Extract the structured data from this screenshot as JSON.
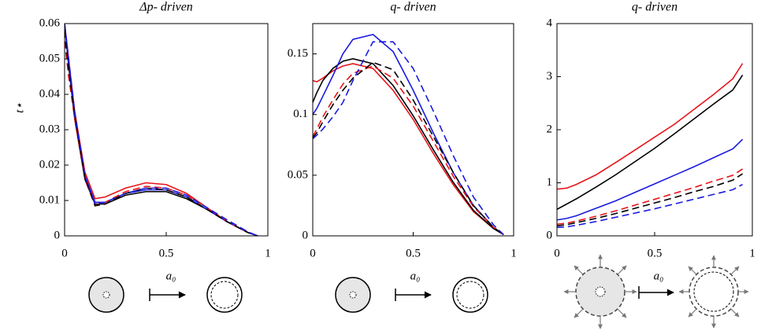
{
  "chart_data": [
    {
      "type": "line",
      "title": "Δp- driven",
      "ylabel": "t⋆",
      "annotation": "a₀",
      "x": [
        0,
        0.02,
        0.05,
        0.1,
        0.15,
        0.2,
        0.3,
        0.4,
        0.5,
        0.6,
        0.7,
        0.8,
        0.9,
        0.95
      ],
      "xlim": [
        0,
        1
      ],
      "xticks": [
        0,
        0.5,
        1
      ],
      "ylim": [
        0,
        0.06
      ],
      "yticks": [
        0,
        0.01,
        0.02,
        0.03,
        0.04,
        0.05,
        0.06
      ],
      "series": [
        {
          "color": "#e8141b",
          "style": "solid",
          "values": [
            0.06,
            0.05,
            0.035,
            0.018,
            0.0105,
            0.011,
            0.0135,
            0.015,
            0.0145,
            0.012,
            0.008,
            0.004,
            0.001,
            0
          ]
        },
        {
          "color": "#000000",
          "style": "solid",
          "values": [
            0.06,
            0.048,
            0.033,
            0.016,
            0.009,
            0.009,
            0.0115,
            0.0125,
            0.0125,
            0.0105,
            0.0075,
            0.004,
            0.001,
            0
          ]
        },
        {
          "color": "#1a1ae0",
          "style": "solid",
          "values": [
            0.06,
            0.049,
            0.034,
            0.017,
            0.0095,
            0.0095,
            0.012,
            0.013,
            0.013,
            0.011,
            0.0075,
            0.004,
            0.001,
            0
          ]
        },
        {
          "color": "#e8141b",
          "style": "dashed",
          "values": [
            0.055,
            0.045,
            0.033,
            0.016,
            0.0085,
            0.0095,
            0.0125,
            0.014,
            0.0135,
            0.0115,
            0.008,
            0.004,
            0.001,
            0
          ]
        },
        {
          "color": "#000000",
          "style": "dashed",
          "values": [
            0.058,
            0.047,
            0.034,
            0.0165,
            0.0085,
            0.009,
            0.012,
            0.0135,
            0.013,
            0.011,
            0.0075,
            0.004,
            0.001,
            0
          ]
        },
        {
          "color": "#1a1ae0",
          "style": "dashed",
          "values": [
            0.06,
            0.05,
            0.035,
            0.017,
            0.009,
            0.0095,
            0.012,
            0.0135,
            0.0135,
            0.0115,
            0.008,
            0.0045,
            0.0012,
            0
          ]
        }
      ]
    },
    {
      "type": "line",
      "title": "q- driven",
      "annotation": "a₀",
      "x": [
        0,
        0.02,
        0.05,
        0.1,
        0.15,
        0.2,
        0.3,
        0.4,
        0.5,
        0.6,
        0.7,
        0.8,
        0.9,
        0.95
      ],
      "xlim": [
        0,
        1
      ],
      "xticks": [
        0,
        0.5,
        1
      ],
      "ylim": [
        0,
        0.175
      ],
      "yticks": [
        0,
        0.05,
        0.1,
        0.15
      ],
      "series": [
        {
          "color": "#e8141b",
          "style": "solid",
          "values": [
            0.128,
            0.127,
            0.13,
            0.136,
            0.14,
            0.142,
            0.138,
            0.12,
            0.096,
            0.068,
            0.042,
            0.02,
            0.006,
            0.001
          ]
        },
        {
          "color": "#000000",
          "style": "solid",
          "values": [
            0.11,
            0.118,
            0.128,
            0.138,
            0.144,
            0.146,
            0.142,
            0.124,
            0.099,
            0.071,
            0.044,
            0.021,
            0.006,
            0.001
          ]
        },
        {
          "color": "#1a1ae0",
          "style": "solid",
          "values": [
            0.1,
            0.105,
            0.115,
            0.132,
            0.15,
            0.162,
            0.166,
            0.152,
            0.12,
            0.085,
            0.052,
            0.025,
            0.007,
            0.001
          ]
        },
        {
          "color": "#e8141b",
          "style": "dashed",
          "values": [
            0.082,
            0.088,
            0.098,
            0.112,
            0.125,
            0.134,
            0.14,
            0.13,
            0.107,
            0.078,
            0.049,
            0.024,
            0.007,
            0.001
          ]
        },
        {
          "color": "#000000",
          "style": "dashed",
          "values": [
            0.081,
            0.085,
            0.094,
            0.108,
            0.12,
            0.13,
            0.143,
            0.137,
            0.112,
            0.082,
            0.052,
            0.025,
            0.007,
            0.001
          ]
        },
        {
          "color": "#1a1ae0",
          "style": "dashed",
          "values": [
            0.08,
            0.083,
            0.088,
            0.098,
            0.11,
            0.128,
            0.16,
            0.16,
            0.138,
            0.103,
            0.066,
            0.032,
            0.009,
            0.001
          ]
        }
      ]
    },
    {
      "type": "line",
      "title": "q- driven",
      "annotation": "a₀",
      "x": [
        0,
        0.05,
        0.1,
        0.2,
        0.3,
        0.4,
        0.5,
        0.6,
        0.7,
        0.8,
        0.9,
        0.95
      ],
      "xlim": [
        0,
        1
      ],
      "xticks": [
        0,
        0.5,
        1
      ],
      "ylim": [
        0,
        4
      ],
      "yticks": [
        0,
        1,
        2,
        3,
        4
      ],
      "series": [
        {
          "color": "#e8141b",
          "style": "solid",
          "values": [
            0.88,
            0.9,
            0.97,
            1.15,
            1.38,
            1.62,
            1.86,
            2.1,
            2.38,
            2.66,
            2.96,
            3.25
          ]
        },
        {
          "color": "#000000",
          "style": "solid",
          "values": [
            0.5,
            0.6,
            0.7,
            0.92,
            1.15,
            1.4,
            1.65,
            1.92,
            2.2,
            2.48,
            2.75,
            3.03
          ]
        },
        {
          "color": "#1a1ae0",
          "style": "solid",
          "values": [
            0.3,
            0.33,
            0.38,
            0.52,
            0.66,
            0.82,
            0.98,
            1.14,
            1.3,
            1.47,
            1.64,
            1.82
          ]
        },
        {
          "color": "#e8141b",
          "style": "dashed",
          "values": [
            0.22,
            0.24,
            0.28,
            0.37,
            0.47,
            0.58,
            0.69,
            0.8,
            0.91,
            1.03,
            1.14,
            1.26
          ]
        },
        {
          "color": "#000000",
          "style": "dashed",
          "values": [
            0.19,
            0.21,
            0.25,
            0.33,
            0.42,
            0.52,
            0.62,
            0.72,
            0.83,
            0.93,
            1.05,
            1.17
          ]
        },
        {
          "color": "#1a1ae0",
          "style": "dashed",
          "values": [
            0.16,
            0.17,
            0.2,
            0.27,
            0.35,
            0.43,
            0.51,
            0.6,
            0.69,
            0.78,
            0.87,
            0.97
          ]
        }
      ]
    }
  ]
}
